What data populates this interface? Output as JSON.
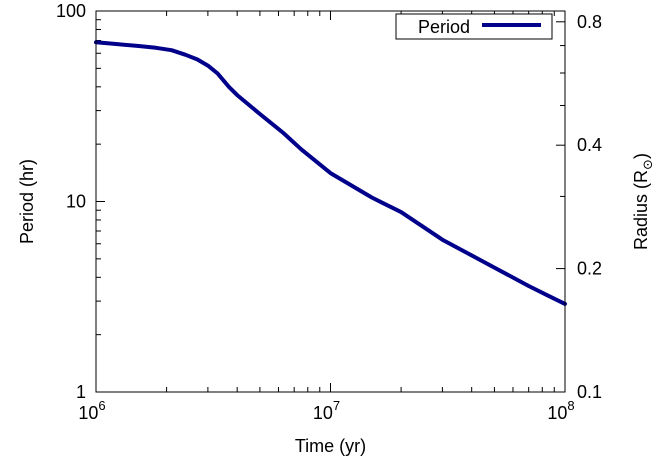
{
  "chart_data": {
    "type": "line",
    "title": "",
    "xlabel": "Time (yr)",
    "ylabel": "Period (hr)",
    "y2label": "Radius (R",
    "y2label_sub": "⊙",
    "x_scale": "log",
    "y_scale": "log",
    "y2_scale": "log",
    "xlim": [
      1000000,
      100000000
    ],
    "ylim": [
      1,
      100
    ],
    "y2lim": [
      0.1,
      0.85
    ],
    "grid": false,
    "legend_position": "top-right",
    "x_ticks": [
      {
        "value": 1000000,
        "base": "10",
        "exp": "6"
      },
      {
        "value": 10000000,
        "base": "10",
        "exp": "7"
      },
      {
        "value": 100000000,
        "base": "10",
        "exp": "8"
      }
    ],
    "y_ticks": [
      {
        "value": 1,
        "label": "1"
      },
      {
        "value": 10,
        "label": "10"
      },
      {
        "value": 100,
        "label": "100"
      }
    ],
    "y2_ticks": [
      {
        "value": 0.1,
        "label": "0.1"
      },
      {
        "value": 0.2,
        "label": "0.2"
      },
      {
        "value": 0.4,
        "label": "0.4"
      },
      {
        "value": 0.8,
        "label": "0.8"
      }
    ],
    "series": [
      {
        "name": "Period",
        "color": "#00008b",
        "x": [
          1000000,
          1200000,
          1500000,
          1800000,
          2100000,
          2400000,
          2700000,
          3000000,
          3300000,
          3700000,
          4000000,
          5000000,
          6300000,
          7500000,
          10000000,
          15000000,
          20000000,
          30000000,
          50000000,
          70000000,
          85000000,
          100000000
        ],
        "y": [
          68.5,
          67.2,
          65.6,
          64.1,
          62.3,
          59.0,
          55.7,
          51.7,
          47.0,
          39.8,
          36.2,
          28.8,
          22.9,
          18.8,
          14.1,
          10.5,
          8.8,
          6.3,
          4.5,
          3.6,
          3.2,
          2.9
        ]
      }
    ]
  }
}
